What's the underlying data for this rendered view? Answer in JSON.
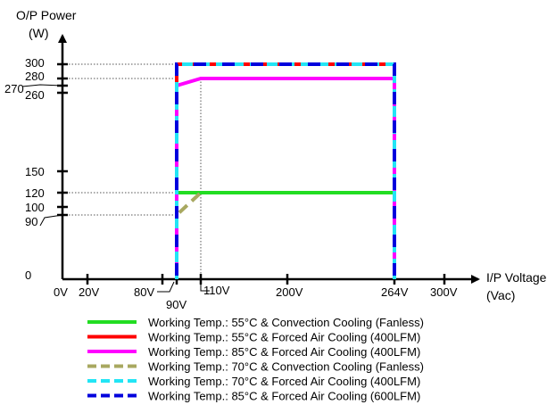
{
  "chart_data": {
    "type": "line",
    "title": "",
    "ylabel_line1": "O/P Power",
    "ylabel_line2": "(W)",
    "xlabel_line1": "I/P Voltage",
    "xlabel_line2": "(Vac)",
    "x_ticks": [
      {
        "value": 0,
        "label": "0V"
      },
      {
        "value": 20,
        "label": "20V"
      },
      {
        "value": 80,
        "label": "80V"
      },
      {
        "value": 90,
        "label": "90V"
      },
      {
        "value": 110,
        "label": "110V"
      },
      {
        "value": 200,
        "label": "200V"
      },
      {
        "value": 264,
        "label": "264V"
      },
      {
        "value": 300,
        "label": "300V"
      }
    ],
    "y_ticks": [
      {
        "value": 0,
        "label": "0"
      },
      {
        "value": 90,
        "label": "90"
      },
      {
        "value": 100,
        "label": "100"
      },
      {
        "value": 120,
        "label": "120"
      },
      {
        "value": 150,
        "label": "150"
      },
      {
        "value": 260,
        "label": "260"
      },
      {
        "value": 270,
        "label": "270"
      },
      {
        "value": 280,
        "label": "280"
      },
      {
        "value": 300,
        "label": "300"
      }
    ],
    "series": [
      {
        "name": "Working Temp.: 55°C & Convection Cooling (Fanless)",
        "color": "#22dd22",
        "dash": "solid",
        "points": [
          [
            90,
            0
          ],
          [
            90,
            120
          ],
          [
            264,
            120
          ],
          [
            264,
            0
          ]
        ]
      },
      {
        "name": "Working Temp.: 55°C & Forced Air Cooling (400LFM)",
        "color": "#ff0000",
        "dash": "solid",
        "points": [
          [
            90,
            0
          ],
          [
            90,
            300
          ],
          [
            264,
            300
          ],
          [
            264,
            0
          ]
        ]
      },
      {
        "name": "Working Temp.: 85°C & Forced Air Cooling (400LFM)",
        "color": "#ff00ff",
        "dash": "solid",
        "points": [
          [
            90,
            0
          ],
          [
            90,
            270
          ],
          [
            110,
            280
          ],
          [
            264,
            280
          ],
          [
            264,
            0
          ]
        ]
      },
      {
        "name": "Working Temp.: 70°C & Convection Cooling (Fanless)",
        "color": "#a8a860",
        "dash": "dashed",
        "points": [
          [
            90,
            0
          ],
          [
            90,
            90
          ],
          [
            110,
            120
          ]
        ]
      },
      {
        "name": "Working Temp.: 70°C & Forced Air Cooling (400LFM)",
        "color": "#22e5f5",
        "dash": "dashed",
        "points": [
          [
            90,
            0
          ],
          [
            90,
            300
          ],
          [
            264,
            300
          ],
          [
            264,
            0
          ]
        ]
      },
      {
        "name": "Working Temp.: 85°C & Forced Air Cooling (600LFM)",
        "color": "#0000dd",
        "dash": "dashed",
        "points": [
          [
            90,
            0
          ],
          [
            90,
            300
          ],
          [
            264,
            300
          ],
          [
            264,
            0
          ]
        ]
      }
    ]
  }
}
